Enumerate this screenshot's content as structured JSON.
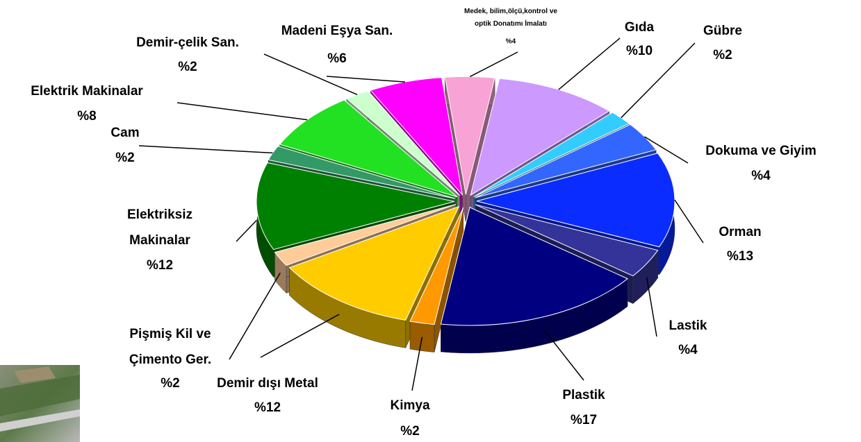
{
  "chart_data": {
    "type": "pie",
    "categories": [
      "Medek, bilim,ölçü,kontrol ve\noptik Donatımı İmalatı",
      "Gıda",
      "Gübre",
      "Dokuma ve Giyim",
      "Orman",
      "Lastik",
      "Plastik",
      "Kimya",
      "Demir dışı Metal",
      "Pişmiş Kil ve\nÇimento Ger.",
      "Elektriksiz\nMakinalar",
      "Cam",
      "Elektrik Makinalar",
      "Demir-çelik San.",
      "Madeni Eşya San."
    ],
    "values": [
      4,
      10,
      2,
      4,
      13,
      4,
      17,
      2,
      12,
      2,
      12,
      2,
      8,
      2,
      6
    ],
    "value_labels": [
      "%4",
      "%10",
      "%2",
      "%4",
      "%13",
      "%4",
      "%17",
      "%2",
      "%12",
      "%2",
      "%12",
      "%2",
      "%8",
      "%2",
      "%6"
    ],
    "colors": [
      "#f7a3d6",
      "#cc99ff",
      "#33ccff",
      "#3366ff",
      "#0a2cff",
      "#333399",
      "#000080",
      "#ff9900",
      "#ffcc00",
      "#ffcc99",
      "#008000",
      "#339966",
      "#22e022",
      "#ccffcc",
      "#ff00ff"
    ]
  }
}
